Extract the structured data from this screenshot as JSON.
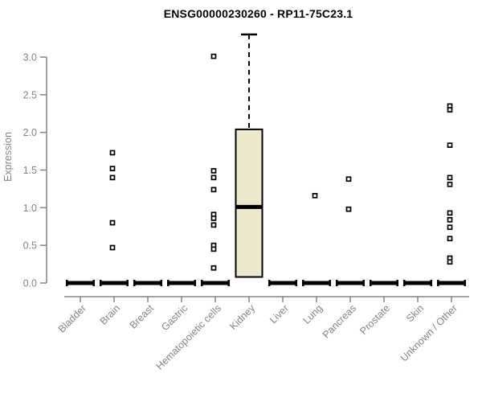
{
  "chart_data": {
    "type": "boxplot",
    "title": "ENSG00000230260 - RP11-75C23.1",
    "xlabel": "",
    "ylabel": "Expression",
    "ylim": [
      0,
      3.3
    ],
    "ytick_labels": [
      "0.0",
      "0.5",
      "1.0",
      "1.5",
      "2.0",
      "2.5",
      "3.0"
    ],
    "ytick_values": [
      0.0,
      0.5,
      1.0,
      1.5,
      2.0,
      2.5,
      3.0
    ],
    "grid": false,
    "legend": "none",
    "categories": [
      "Bladder",
      "Brain",
      "Breast",
      "Gastric",
      "Hematopoietic cells",
      "Kidney",
      "Liver",
      "Lung",
      "Pancreas",
      "Prostate",
      "Skin",
      "Unknown / Other"
    ],
    "boxes": [
      {
        "category": "Bladder",
        "min": 0,
        "q1": 0,
        "median": 0,
        "q3": 0,
        "max": 0,
        "outliers": []
      },
      {
        "category": "Brain",
        "min": 0,
        "q1": 0,
        "median": 0,
        "q3": 0,
        "max": 0,
        "outliers": [
          1.73,
          1.52,
          1.4,
          0.8,
          0.47
        ]
      },
      {
        "category": "Breast",
        "min": 0,
        "q1": 0,
        "median": 0,
        "q3": 0,
        "max": 0,
        "outliers": []
      },
      {
        "category": "Gastric",
        "min": 0,
        "q1": 0,
        "median": 0,
        "q3": 0,
        "max": 0,
        "outliers": []
      },
      {
        "category": "Hematopoietic cells",
        "min": 0,
        "q1": 0,
        "median": 0,
        "q3": 0,
        "max": 0,
        "outliers": [
          3.01,
          1.49,
          1.4,
          1.24,
          0.91,
          0.86,
          0.77,
          0.5,
          0.45,
          0.2
        ]
      },
      {
        "category": "Kidney",
        "min": 0,
        "q1": 0.08,
        "median": 1.01,
        "q3": 2.04,
        "max": 3.3,
        "outliers": []
      },
      {
        "category": "Liver",
        "min": 0,
        "q1": 0,
        "median": 0,
        "q3": 0,
        "max": 0,
        "outliers": []
      },
      {
        "category": "Lung",
        "min": 0,
        "q1": 0,
        "median": 0,
        "q3": 0,
        "max": 0,
        "outliers": [
          1.16
        ]
      },
      {
        "category": "Pancreas",
        "min": 0,
        "q1": 0,
        "median": 0,
        "q3": 0,
        "max": 0,
        "outliers": [
          1.38,
          0.98
        ]
      },
      {
        "category": "Prostate",
        "min": 0,
        "q1": 0,
        "median": 0,
        "q3": 0,
        "max": 0,
        "outliers": []
      },
      {
        "category": "Skin",
        "min": 0,
        "q1": 0,
        "median": 0,
        "q3": 0,
        "max": 0,
        "outliers": []
      },
      {
        "category": "Unknown / Other",
        "min": 0,
        "q1": 0,
        "median": 0,
        "q3": 0,
        "max": 0,
        "outliers": [
          2.35,
          2.3,
          1.83,
          1.4,
          1.31,
          0.93,
          0.84,
          0.74,
          0.59,
          0.33,
          0.28
        ]
      }
    ],
    "colors": {
      "box_fill": "#ece8cd",
      "box_border": "#000000",
      "median_line": "#000000",
      "zero_bar": "#000000",
      "outlier_border": "#000000",
      "outlier_fill": "#ffffff",
      "axis": "#848484",
      "tick_label": "#848484",
      "title": "#000000",
      "background": "#ffffff"
    }
  }
}
